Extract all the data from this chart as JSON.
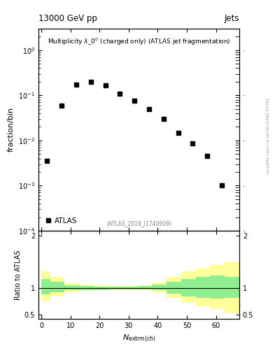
{
  "title_top_left": "13000 GeV pp",
  "title_top_right": "Jets",
  "main_title": "Multiplicity $\\lambda\\_0^0$ (charged only) (ATLAS jet fragmentation)",
  "ylabel_main": "fraction/bin",
  "ylabel_ratio": "Ratio to ATLAS",
  "xlabel": "$N_{\\mathrm{extrm|ch)}}$",
  "watermark": "(ATLAS_2019_I1740909)",
  "legend_label": "ATLAS",
  "data_x": [
    2,
    7,
    12,
    17,
    22,
    27,
    32,
    37,
    42,
    47,
    52,
    57,
    62
  ],
  "data_y": [
    0.0035,
    0.06,
    0.17,
    0.2,
    0.165,
    0.11,
    0.075,
    0.05,
    0.03,
    0.015,
    0.0085,
    0.0045,
    0.001
  ],
  "ratio_x": [
    0,
    3,
    8,
    13,
    18,
    23,
    28,
    33,
    38,
    43,
    48,
    53,
    58,
    63
  ],
  "ratio_x_end": [
    3,
    8,
    13,
    18,
    23,
    28,
    33,
    38,
    43,
    48,
    53,
    58,
    63,
    68
  ],
  "green_low": [
    0.88,
    0.93,
    0.97,
    0.97,
    0.97,
    0.98,
    0.98,
    0.98,
    0.96,
    0.9,
    0.85,
    0.82,
    0.8,
    0.82
  ],
  "green_high": [
    1.18,
    1.12,
    1.06,
    1.04,
    1.03,
    1.03,
    1.03,
    1.04,
    1.07,
    1.12,
    1.18,
    1.22,
    1.25,
    1.22
  ],
  "yellow_low": [
    0.75,
    0.85,
    0.93,
    0.95,
    0.96,
    0.97,
    0.97,
    0.97,
    0.93,
    0.82,
    0.72,
    0.65,
    0.6,
    0.52
  ],
  "yellow_high": [
    1.33,
    1.22,
    1.1,
    1.07,
    1.06,
    1.05,
    1.05,
    1.06,
    1.11,
    1.22,
    1.32,
    1.38,
    1.45,
    1.5
  ],
  "ylim_main": [
    0.0001,
    3.0
  ],
  "ylim_ratio": [
    0.42,
    2.1
  ],
  "xlim": [
    -1,
    68
  ],
  "yticks_ratio": [
    0.5,
    1.0,
    2.0
  ],
  "side_label": "mcplots.cern.ch [arXiv:1306.3436]",
  "marker_color": "black",
  "marker_size": 4,
  "green_color": "#90EE90",
  "yellow_color": "#FFFF99"
}
